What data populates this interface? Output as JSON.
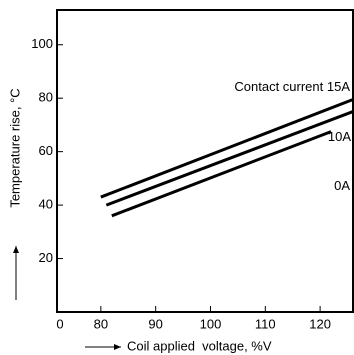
{
  "chart_data": {
    "type": "line",
    "x_label": "Coil applied  voltage, %V",
    "y_label": "Temperature rise, °C",
    "xlim": [
      72,
      126
    ],
    "xticks": [
      {
        "value": 72,
        "label": "0"
      },
      80,
      90,
      100,
      110,
      120
    ],
    "ylim": [
      0,
      113
    ],
    "yticks": [
      20,
      40,
      60,
      80,
      100
    ],
    "grid": false,
    "color": "#000000",
    "series": [
      {
        "name": "Contact current 15A",
        "color": "#000000",
        "x": [
          80,
          126
        ],
        "values": [
          43,
          79.5
        ]
      },
      {
        "name": "10A",
        "color": "#000000",
        "x": [
          81,
          126
        ],
        "values": [
          40,
          75
        ]
      },
      {
        "name": "0A",
        "color": "#000000",
        "x": [
          82,
          122
        ],
        "values": [
          36,
          67.5
        ]
      }
    ]
  }
}
